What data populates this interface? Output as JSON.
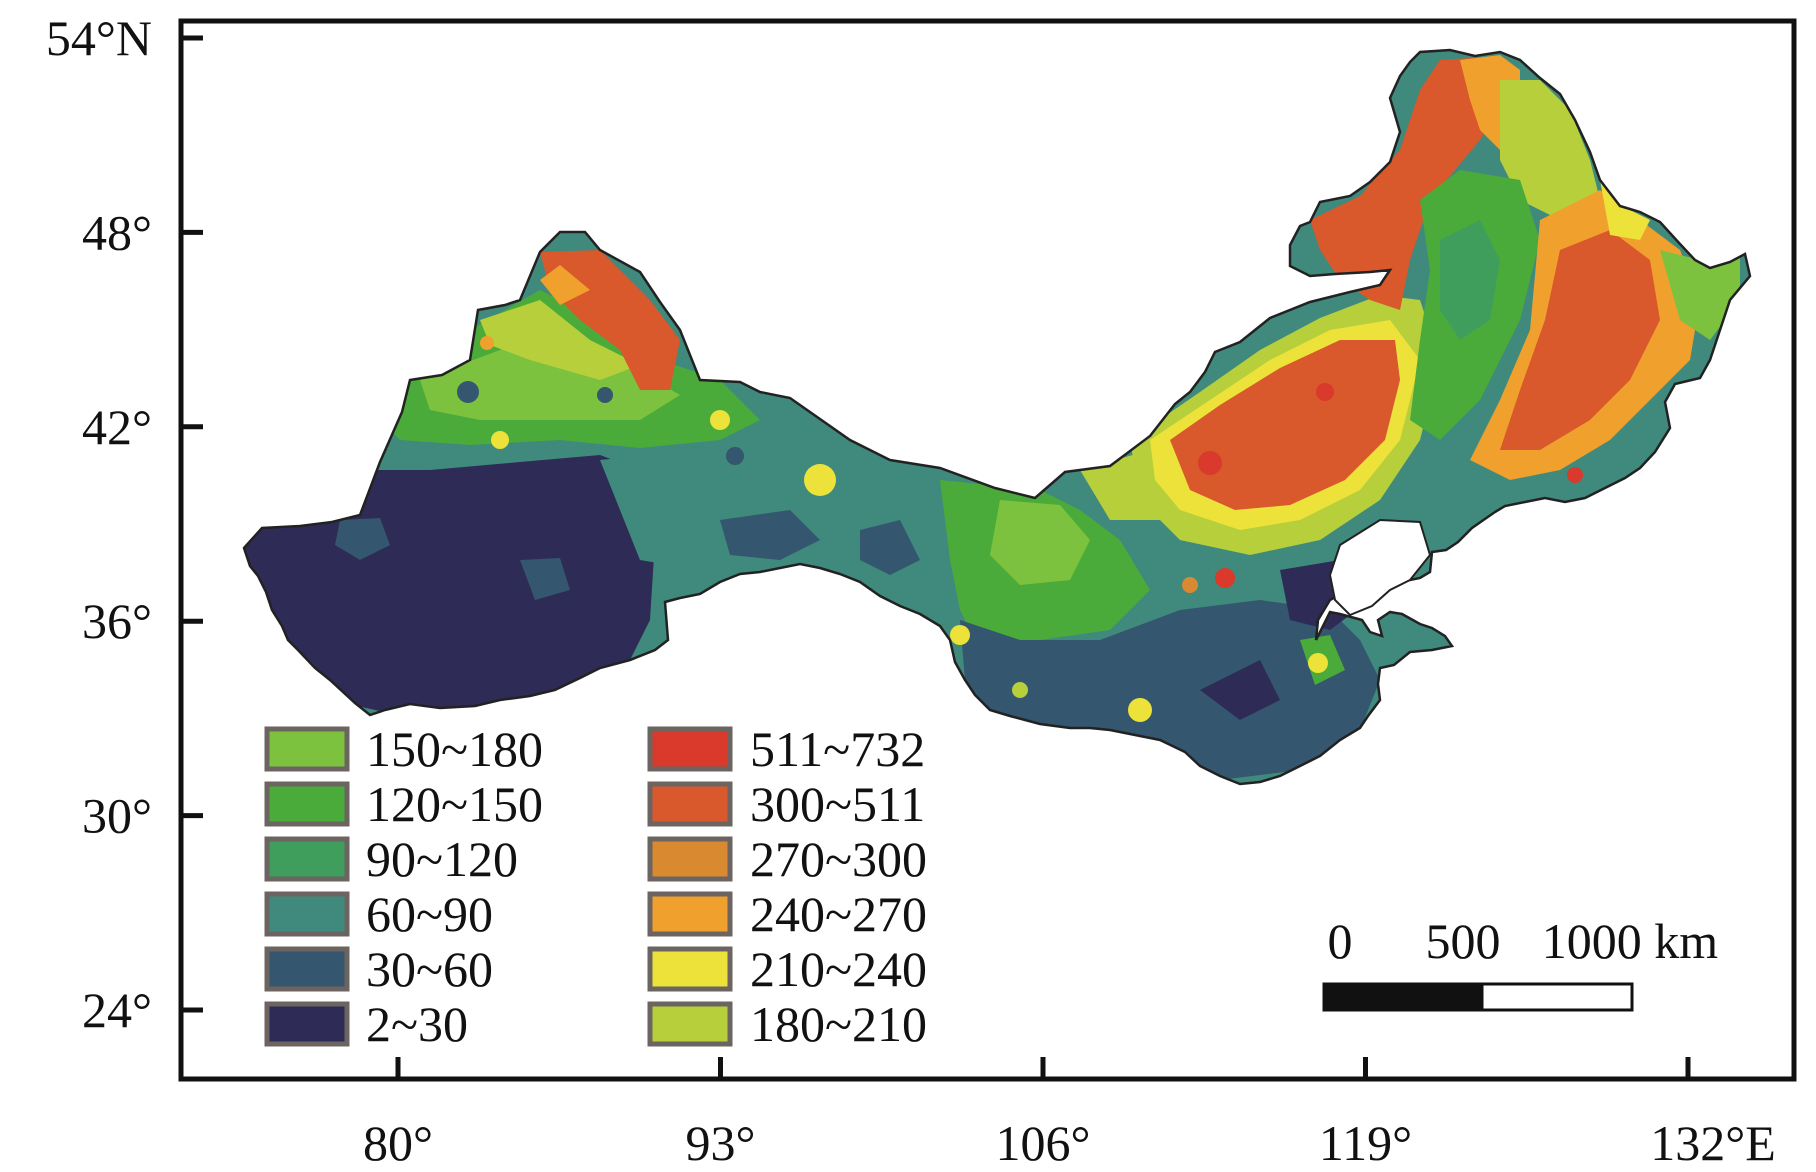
{
  "map": {
    "lat_ticks": [
      {
        "value": 54,
        "label": "54°N"
      },
      {
        "value": 48,
        "label": "48°"
      },
      {
        "value": 42,
        "label": "42°"
      },
      {
        "value": 36,
        "label": "36°"
      },
      {
        "value": 30,
        "label": "30°"
      },
      {
        "value": 24,
        "label": "24°"
      }
    ],
    "lon_ticks": [
      {
        "value": 80,
        "label": "80°"
      },
      {
        "value": 93,
        "label": "93°"
      },
      {
        "value": 106,
        "label": "106°"
      },
      {
        "value": 119,
        "label": "119°"
      },
      {
        "value": 132,
        "label": "132°E"
      }
    ],
    "legend_left": [
      {
        "label": "150~180",
        "color": "#7dc23f"
      },
      {
        "label": "120~150",
        "color": "#4aab3a"
      },
      {
        "label": "90~120",
        "color": "#3f9e5c"
      },
      {
        "label": "60~90",
        "color": "#3f8a7d"
      },
      {
        "label": "30~60",
        "color": "#34566e"
      },
      {
        "label": "2~30",
        "color": "#2e2b56"
      }
    ],
    "legend_right": [
      {
        "label": "511~732",
        "color": "#d93a2b"
      },
      {
        "label": "300~511",
        "color": "#d9582c"
      },
      {
        "label": "270~300",
        "color": "#d98a30"
      },
      {
        "label": "240~270",
        "color": "#f0a02c"
      },
      {
        "label": "210~240",
        "color": "#ece23a"
      },
      {
        "label": "180~210",
        "color": "#b6cf3b"
      }
    ],
    "scale_bar": {
      "labels": [
        "0",
        "500",
        "1000 km"
      ]
    }
  }
}
